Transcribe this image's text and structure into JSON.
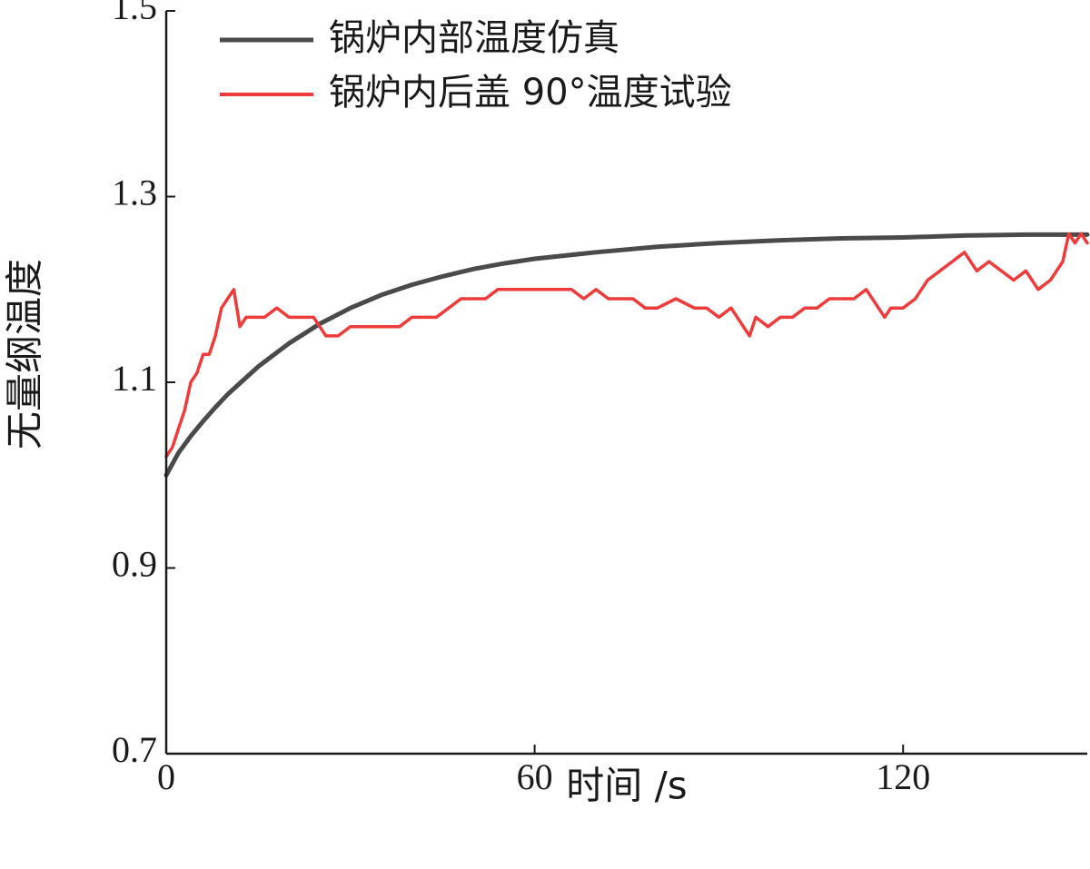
{
  "chart_data": {
    "type": "line",
    "title": "",
    "xlabel": "时间 /s",
    "ylabel": "无量纲温度",
    "xlim": [
      0,
      150
    ],
    "ylim": [
      0.7,
      1.5
    ],
    "xticks": [
      0,
      60,
      120
    ],
    "xtick_labels": [
      "0",
      "60",
      "120"
    ],
    "yticks": [
      0.7,
      0.9,
      1.1,
      1.3,
      1.5
    ],
    "ytick_labels": [
      "0.7",
      "0.9",
      "1.1",
      "1.3",
      "1.5"
    ],
    "grid": false,
    "legend_position": "top-left",
    "series": [
      {
        "name": "锅炉内部温度仿真",
        "color": "#4a4a4a",
        "x": [
          0,
          2,
          4,
          6,
          8,
          10,
          12,
          15,
          18,
          20,
          25,
          30,
          35,
          40,
          45,
          50,
          55,
          60,
          70,
          80,
          90,
          100,
          110,
          120,
          130,
          140,
          150
        ],
        "y": [
          1.0,
          1.024,
          1.042,
          1.058,
          1.073,
          1.087,
          1.099,
          1.117,
          1.132,
          1.142,
          1.163,
          1.18,
          1.194,
          1.205,
          1.214,
          1.222,
          1.228,
          1.233,
          1.24,
          1.246,
          1.25,
          1.253,
          1.255,
          1.256,
          1.258,
          1.259,
          1.259
        ]
      },
      {
        "name": "锅炉内后盖 90°温度试验",
        "color": "#ee3b3b",
        "x": [
          0,
          1,
          2,
          3,
          4,
          5,
          6,
          7,
          8,
          9,
          10,
          11,
          12,
          13,
          14,
          15,
          16,
          18,
          20,
          22,
          24,
          25,
          26,
          28,
          30,
          32,
          34,
          36,
          38,
          40,
          42,
          44,
          46,
          48,
          50,
          52,
          54,
          56,
          58,
          60,
          63,
          66,
          68,
          70,
          72,
          74,
          76,
          78,
          80,
          83,
          86,
          88,
          90,
          92,
          94,
          95,
          96,
          98,
          100,
          102,
          104,
          106,
          108,
          110,
          112,
          114,
          116,
          117,
          118,
          120,
          122,
          124,
          126,
          128,
          130,
          132,
          134,
          136,
          138,
          140,
          142,
          144,
          146,
          147,
          148,
          149,
          150
        ],
        "y": [
          1.02,
          1.03,
          1.05,
          1.07,
          1.1,
          1.11,
          1.13,
          1.13,
          1.15,
          1.18,
          1.19,
          1.2,
          1.16,
          1.17,
          1.17,
          1.17,
          1.17,
          1.18,
          1.17,
          1.17,
          1.17,
          1.16,
          1.15,
          1.15,
          1.16,
          1.16,
          1.16,
          1.16,
          1.16,
          1.17,
          1.17,
          1.17,
          1.18,
          1.19,
          1.19,
          1.19,
          1.2,
          1.2,
          1.2,
          1.2,
          1.2,
          1.2,
          1.19,
          1.2,
          1.19,
          1.19,
          1.19,
          1.18,
          1.18,
          1.19,
          1.18,
          1.18,
          1.17,
          1.18,
          1.16,
          1.15,
          1.17,
          1.16,
          1.17,
          1.17,
          1.18,
          1.18,
          1.19,
          1.19,
          1.19,
          1.2,
          1.18,
          1.17,
          1.18,
          1.18,
          1.19,
          1.21,
          1.22,
          1.23,
          1.24,
          1.22,
          1.23,
          1.22,
          1.21,
          1.22,
          1.2,
          1.21,
          1.23,
          1.26,
          1.25,
          1.26,
          1.25
        ]
      }
    ]
  }
}
